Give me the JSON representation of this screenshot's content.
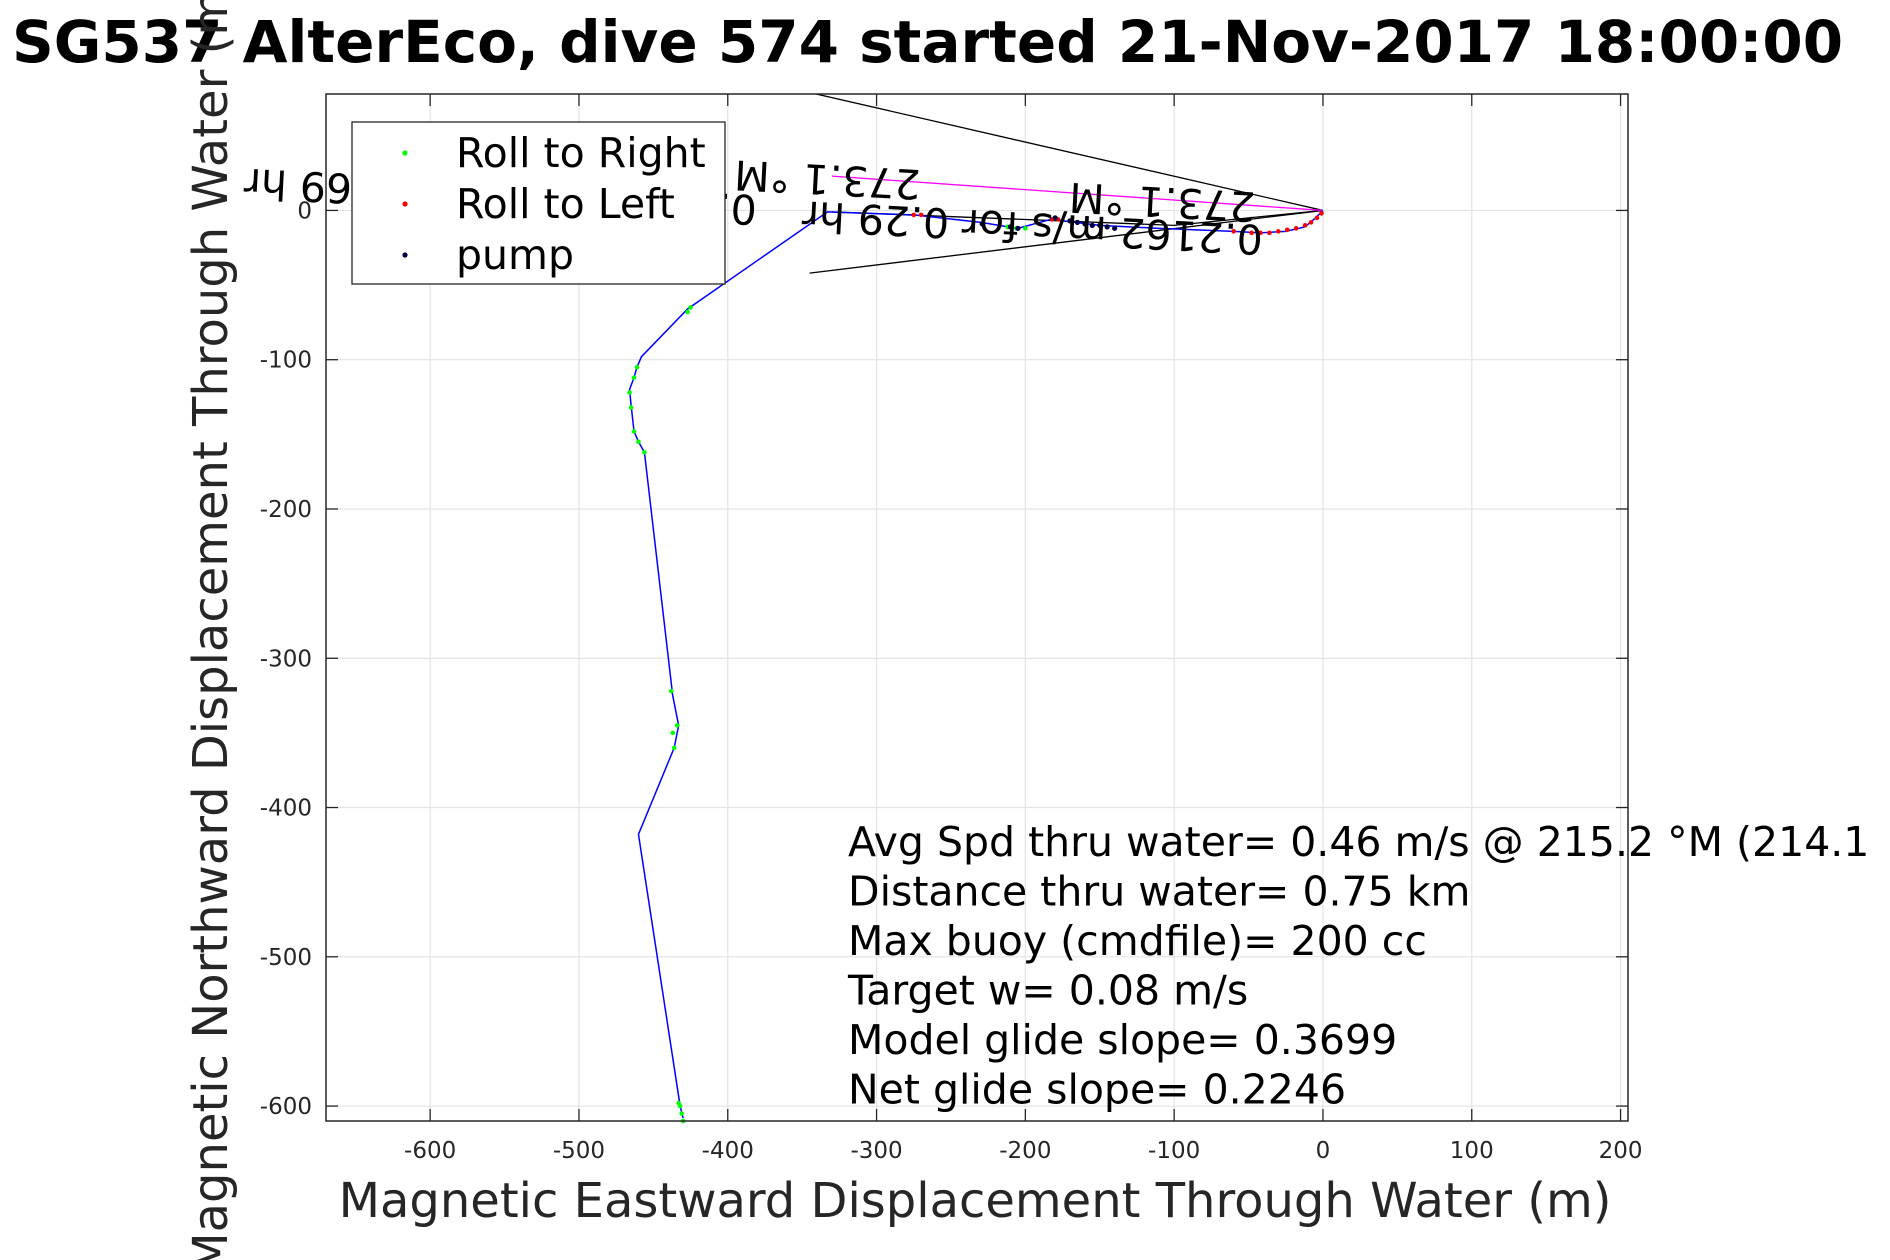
{
  "chart_data": {
    "type": "line",
    "title": "SG537 AlterEco, dive 574 started 21-Nov-2017 18:00:00",
    "xlabel": "Magnetic Eastward Displacement Through Water (m)",
    "ylabel": "Magnetic Northward Displacement Through Water (m)",
    "xlim": [
      -670,
      205
    ],
    "ylim": [
      -610,
      78
    ],
    "xticks": [
      -600,
      -500,
      -400,
      -300,
      -200,
      -100,
      0,
      100,
      200
    ],
    "yticks": [
      -600,
      -500,
      -400,
      -300,
      -200,
      -100,
      0
    ],
    "grid": true,
    "legend_position": "top-left",
    "legend": [
      {
        "label": "Roll to Right",
        "color": "#00ff00"
      },
      {
        "label": "Roll to Left",
        "color": "#ff0000"
      },
      {
        "label": "pump",
        "color": "#000040"
      }
    ],
    "track_color": "#0000ff",
    "track": {
      "x": [
        -430,
        -432,
        -460,
        -436,
        -433,
        -437,
        -456,
        -460,
        -463,
        -465,
        -466,
        -463,
        -461,
        -458,
        -427,
        -333,
        -275,
        -230,
        -205,
        -183,
        -150,
        -110,
        -60,
        -42,
        -25,
        -12,
        -5,
        0
      ],
      "y": [
        -608,
        -600,
        -418,
        -360,
        -345,
        -325,
        -162,
        -155,
        -148,
        -130,
        -120,
        -112,
        -105,
        -98,
        -66,
        -1,
        -3,
        -8,
        -12,
        -6,
        -10,
        -12,
        -14,
        -15,
        -14,
        -11,
        -5,
        0
      ]
    },
    "roll_right": {
      "x": [
        -430,
        -431,
        -432,
        -433,
        -436,
        -437,
        -434,
        -438,
        -456,
        -460,
        -463,
        -465,
        -466,
        -463,
        -461,
        -427,
        -425,
        -212,
        -206,
        -200
      ],
      "y": [
        -610,
        -605,
        -600,
        -598,
        -360,
        -350,
        -345,
        -322,
        -162,
        -155,
        -148,
        -132,
        -122,
        -112,
        -105,
        -68,
        -65,
        -11,
        -12,
        -12
      ]
    },
    "roll_left": {
      "x": [
        -275,
        -270,
        -182,
        -178,
        -60,
        -48,
        -42,
        -36,
        -30,
        -24,
        -18,
        -12,
        -8,
        -4,
        -1
      ],
      "y": [
        -3,
        -3,
        -6,
        -6,
        -14,
        -15,
        -15,
        -15,
        -14,
        -13,
        -12,
        -10,
        -8,
        -5,
        -2
      ]
    },
    "pump": {
      "x": [
        -229,
        -210,
        -205,
        -180,
        -170,
        -165,
        -160,
        -155,
        -150,
        -145,
        -140
      ],
      "y": [
        -9,
        -11,
        -12,
        -5,
        -7,
        -8,
        -9,
        -10,
        -10,
        -11,
        -12
      ]
    },
    "magenta_line": {
      "x": [
        -330,
        0
      ],
      "y": [
        23,
        0
      ]
    },
    "black_lines": [
      {
        "x": [
          -345,
          0
        ],
        "y": [
          79,
          0
        ]
      },
      {
        "x": [
          -345,
          0
        ],
        "y": [
          -42,
          0
        ]
      },
      {
        "x": [
          -330,
          -100,
          0
        ],
        "y": [
          -1,
          -10,
          0
        ]
      }
    ],
    "rotated_labels": [
      {
        "text": "0.4467 m/s for 0.2469 hr",
        "x": -380,
        "y": 10,
        "angle": 183
      },
      {
        "text": "273.1 °M",
        "x": -270,
        "y": 27,
        "angle": 183
      },
      {
        "text": "0.2162 m/s for 0.29 hr",
        "x": -40,
        "y": -10,
        "angle": 183
      },
      {
        "text": "273.1 °M",
        "x": -45,
        "y": 12,
        "angle": 183
      }
    ],
    "annotations": [
      "Avg Spd thru water=  0.46 m/s @ 215.2 °M (214.1",
      "Distance thru water=  0.75 km",
      "Max buoy (cmdfile)= 200 cc",
      "Target w= 0.08 m/s",
      "Model glide slope= 0.3699",
      "Net glide slope= 0.2246"
    ]
  }
}
